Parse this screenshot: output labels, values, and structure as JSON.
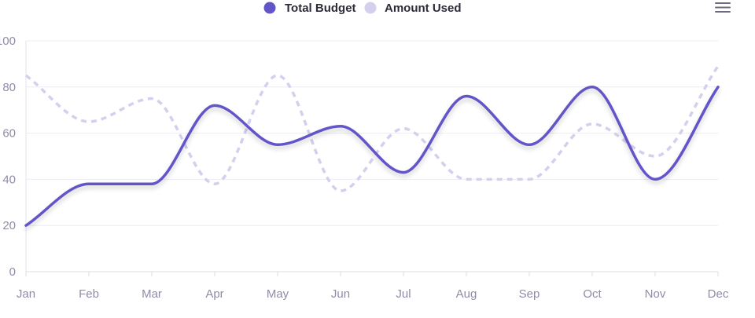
{
  "chart_data": {
    "type": "line",
    "categories": [
      "Jan",
      "Feb",
      "Mar",
      "Apr",
      "May",
      "Jun",
      "Jul",
      "Aug",
      "Sep",
      "Oct",
      "Nov",
      "Dec"
    ],
    "series": [
      {
        "name": "Total Budget",
        "values": [
          20,
          38,
          38,
          72,
          55,
          63,
          43,
          76,
          55,
          80,
          40,
          80
        ],
        "color": "#6254c9",
        "style": "solid"
      },
      {
        "name": "Amount Used",
        "values": [
          85,
          65,
          75,
          38,
          85,
          35,
          62,
          40,
          40,
          64,
          50,
          89
        ],
        "color": "#d5cfee",
        "style": "dashed"
      }
    ],
    "ylim": [
      0,
      100
    ],
    "yticks": [
      "0",
      "20",
      "40",
      "60",
      "80",
      "100"
    ],
    "grid": true,
    "legend_position": "top-center"
  },
  "toolbar": {
    "menu_icon": "hamburger-menu-icon"
  }
}
